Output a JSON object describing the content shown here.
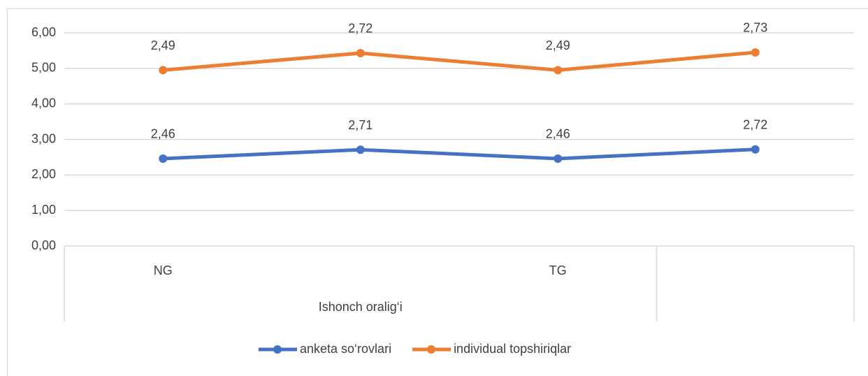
{
  "chart_data": {
    "type": "line",
    "stacked": true,
    "categories": [
      "NG",
      null,
      "TG",
      null
    ],
    "category_groups": [
      {
        "label": "Ishonch oralig‘i",
        "count": 3
      },
      {
        "label": null,
        "count": 1
      }
    ],
    "series": [
      {
        "name": "anketa so‘rovlari",
        "color": "#4472c4",
        "values": [
          2.46,
          2.71,
          2.46,
          2.72
        ],
        "value_labels": [
          "2,46",
          "2,71",
          "2,46",
          "2,72"
        ]
      },
      {
        "name": "individual topshiriqlar",
        "color": "#ed7d31",
        "values": [
          2.49,
          2.72,
          2.49,
          2.73
        ],
        "value_labels": [
          "2,49",
          "2,72",
          "2,49",
          "2,73"
        ]
      }
    ],
    "ylim": [
      0,
      6
    ],
    "yticks": [
      {
        "value": 0,
        "label": "0,00"
      },
      {
        "value": 1,
        "label": "1,00"
      },
      {
        "value": 2,
        "label": "2,00"
      },
      {
        "value": 3,
        "label": "3,00"
      },
      {
        "value": 4,
        "label": "4,00"
      },
      {
        "value": 5,
        "label": "5,00"
      },
      {
        "value": 6,
        "label": "6,00"
      }
    ],
    "grid": true,
    "legend": "bottom"
  }
}
